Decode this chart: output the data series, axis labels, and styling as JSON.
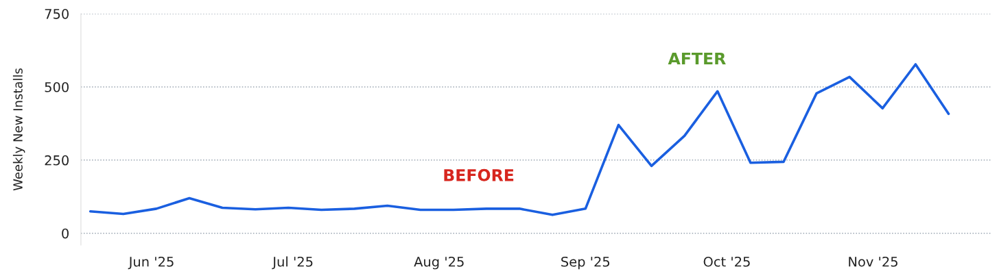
{
  "chart_data": {
    "type": "line",
    "ylabel": "Weekly New Installs",
    "x": [
      "2025-05-19",
      "2025-05-26",
      "2025-06-02",
      "2025-06-09",
      "2025-06-16",
      "2025-06-23",
      "2025-06-30",
      "2025-07-07",
      "2025-07-14",
      "2025-07-21",
      "2025-07-28",
      "2025-08-04",
      "2025-08-11",
      "2025-08-18",
      "2025-08-25",
      "2025-09-01",
      "2025-09-08",
      "2025-09-15",
      "2025-09-22",
      "2025-09-29",
      "2025-10-06",
      "2025-10-13",
      "2025-10-20",
      "2025-10-27",
      "2025-11-03",
      "2025-11-10",
      "2025-11-17"
    ],
    "series": [
      {
        "color": "#1a5fe0",
        "values": [
          75,
          66,
          84,
          120,
          87,
          82,
          87,
          80,
          84,
          94,
          80,
          80,
          84,
          84,
          63,
          84,
          370,
          230,
          333,
          485,
          241,
          244,
          478,
          534,
          427,
          577,
          408
        ]
      }
    ],
    "xlim": [
      "2025-05-17",
      "2025-11-26"
    ],
    "xticks": [
      {
        "value": "2025-06-01",
        "label": "Jun '25"
      },
      {
        "value": "2025-07-01",
        "label": "Jul '25"
      },
      {
        "value": "2025-08-01",
        "label": "Aug '25"
      },
      {
        "value": "2025-09-01",
        "label": "Sep '25"
      },
      {
        "value": "2025-10-01",
        "label": "Oct '25"
      },
      {
        "value": "2025-11-01",
        "label": "Nov '25"
      }
    ],
    "ylim": [
      -40,
      750
    ],
    "yticks": [
      0,
      250,
      500,
      750
    ],
    "grid": "y",
    "line_style": "solid",
    "marker": "none",
    "annotations": [
      "BEFORE",
      "AFTER"
    ]
  }
}
